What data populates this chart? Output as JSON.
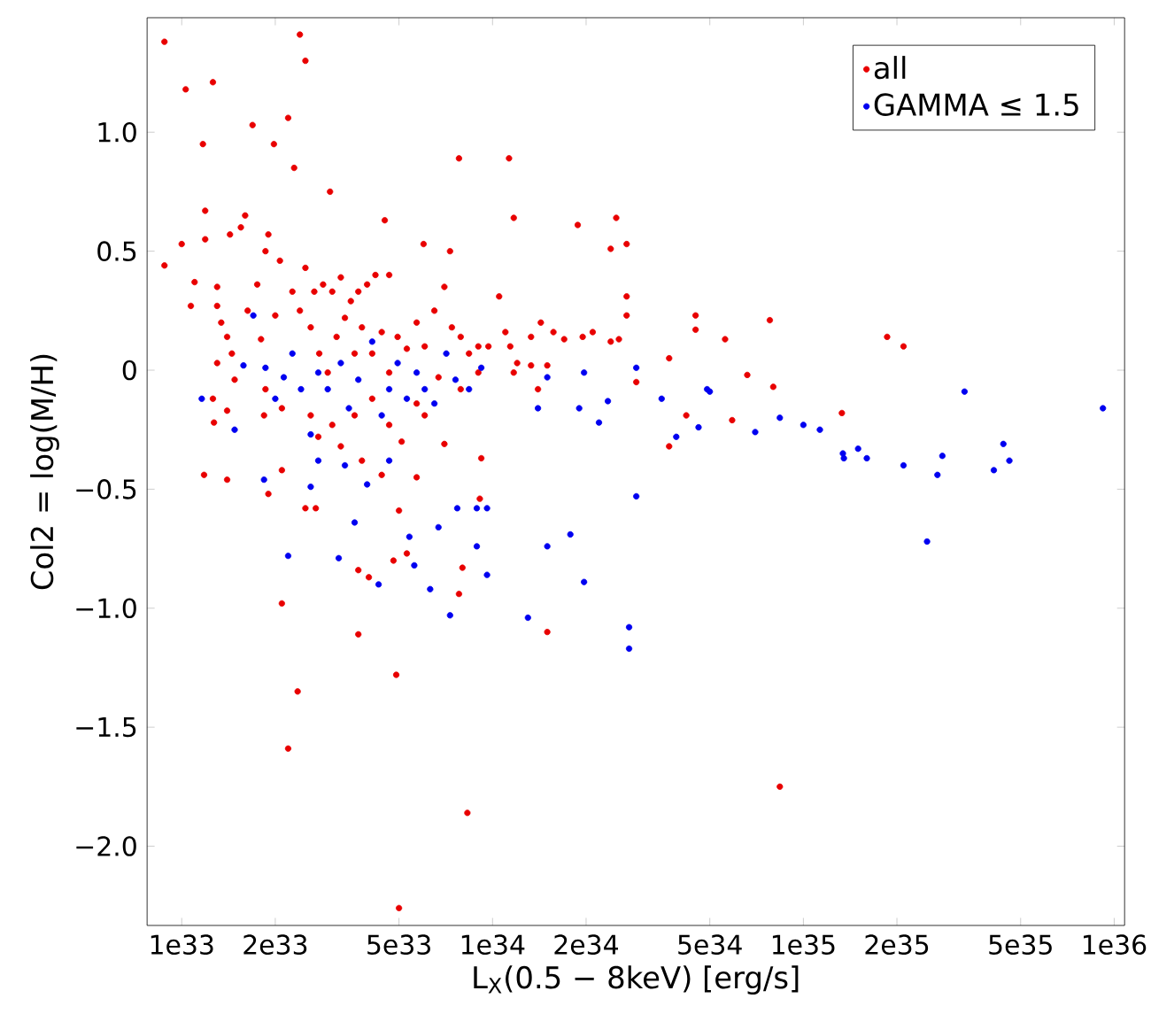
{
  "chart_data": {
    "type": "scatter",
    "xlabel": "L$_{X}$(0.5 − 8keV) [erg/s]",
    "ylabel": "Col2 = log(M/H)",
    "log": "x",
    "legend": "top right",
    "xlim": [
      7.74e+32,
      1.08e+36
    ],
    "ylim": [
      -2.333,
      1.481
    ],
    "xticks": [
      {
        "value": 1e+33,
        "label": "1e33"
      },
      {
        "value": 2e+33,
        "label": "2e33"
      },
      {
        "value": 5e+33,
        "label": "5e33"
      },
      {
        "value": 1e+34,
        "label": "1e34"
      },
      {
        "value": 2e+34,
        "label": "2e34"
      },
      {
        "value": 5e+34,
        "label": "5e34"
      },
      {
        "value": 1e+35,
        "label": "1e35"
      },
      {
        "value": 2e+35,
        "label": "2e35"
      },
      {
        "value": 5e+35,
        "label": "5e35"
      },
      {
        "value": 1e+36,
        "label": "1e36"
      }
    ],
    "yticks": [
      {
        "value": 1.0,
        "label": "1.0"
      },
      {
        "value": 0.5,
        "label": "0.5"
      },
      0,
      {
        "value": -0.5,
        "label": "−0.5"
      },
      {
        "value": -1.0,
        "label": "−1.0"
      },
      {
        "value": -1.5,
        "label": "−1.5"
      },
      {
        "value": -2.0,
        "label": "−2.0"
      }
    ],
    "series": [
      {
        "name": "all",
        "color": "#e80000",
        "x": [
          8.8e+32,
          8.8e+32,
          1.03e+33,
          1e+33,
          1.17e+33,
          1.26e+33,
          1.19e+33,
          1.69e+33,
          1.98e+33,
          2.2e+33,
          2.4e+33,
          2.5e+33,
          2.3e+33,
          3e+33,
          4.5e+33,
          6e+33,
          7.3e+33,
          7.8e+33,
          1.13e+34,
          1.17e+34,
          1.88e+34,
          2.5e+34,
          2.4e+34,
          2.7e+34,
          2.7e+34,
          2.7e+34,
          3.7e+34,
          4.5e+34,
          4.5e+34,
          5.6e+34,
          7.8e+34,
          1.86e+35,
          2.1e+35,
          1.33e+35,
          8.4e+34,
          8e+34,
          6.6e+34,
          5.9e+34,
          4.2e+34,
          3.7e+34,
          2.9e+34,
          1.5e+34,
          8.3e+33,
          5e+33,
          4.9e+33,
          2.2e+33,
          2.36e+33,
          2.1e+33,
          3.7e+33,
          3.7e+33,
          4e+33,
          4.8e+33,
          5e+33,
          5.3e+33,
          7.8e+33,
          8e+33,
          9.1e+33,
          1.4e+33,
          1.18e+33,
          1.9e+33,
          2.5e+33,
          2.7e+33,
          2.1e+33,
          1.07e+33,
          1.1e+33,
          1.19e+33,
          1.3e+33,
          1.3e+33,
          1.43e+33,
          1.55e+33,
          1.6e+33,
          1.34e+33,
          1.45e+33,
          1.3e+33,
          1.26e+33,
          1.27e+33,
          1.4e+33,
          1.63e+33,
          1.75e+33,
          1.86e+33,
          1.9e+33,
          2.07e+33,
          1.8e+33,
          1.86e+33,
          1.84e+33,
          2e+33,
          2.27e+33,
          2.4e+33,
          2.5e+33,
          2.67e+33,
          2.85e+33,
          3.05e+33,
          3.25e+33,
          3.5e+33,
          3.7e+33,
          3.95e+33,
          4.2e+33,
          4.65e+33,
          2.6e+33,
          2.77e+33,
          2.95e+33,
          3.15e+33,
          3.35e+33,
          3.6e+33,
          3.8e+33,
          4.1e+33,
          4.4e+33,
          4.65e+33,
          4.95e+33,
          5.3e+33,
          5.7e+33,
          6.05e+33,
          6.5e+33,
          7e+33,
          7.4e+33,
          7.9e+33,
          8.4e+33,
          9e+33,
          9.7e+33,
          1.05e+34,
          1.1e+34,
          1.14e+34,
          1.2e+34,
          1.33e+34,
          1.43e+34,
          1.57e+34,
          1.7e+34,
          1.95e+34,
          2.1e+34,
          2.4e+34,
          2.55e+34,
          1.33e+34,
          1.5e+34,
          2.1e+33,
          2.6e+33,
          2.75e+33,
          3.05e+33,
          3.6e+33,
          4.1e+33,
          4.65e+33,
          5.1e+33,
          5.7e+33,
          6.05e+33,
          7e+33,
          6.7e+33,
          7.9e+33,
          9e+33,
          1.17e+34,
          1.4e+34,
          3.8e+33,
          4.4e+33,
          5.7e+33,
          9.2e+33,
          3.25e+33,
          1.4e+33,
          1.48e+33
        ],
        "values": [
          1.38,
          0.44,
          1.18,
          0.53,
          0.95,
          1.21,
          0.67,
          1.03,
          0.95,
          1.06,
          1.41,
          1.3,
          0.85,
          0.75,
          0.63,
          0.53,
          0.5,
          0.89,
          0.89,
          0.64,
          0.61,
          0.64,
          0.51,
          0.53,
          0.31,
          0.23,
          0.05,
          0.23,
          0.17,
          0.13,
          0.21,
          0.14,
          0.1,
          -0.18,
          -1.75,
          -0.07,
          -0.02,
          -0.21,
          -0.19,
          -0.32,
          -0.05,
          -1.1,
          -1.86,
          -2.26,
          -1.28,
          -1.59,
          -1.35,
          -0.98,
          -1.11,
          -0.84,
          -0.87,
          -0.8,
          -0.59,
          -0.77,
          -0.94,
          -0.83,
          -0.54,
          -0.46,
          -0.44,
          -0.52,
          -0.58,
          -0.58,
          -0.42,
          0.27,
          0.37,
          0.55,
          0.27,
          0.35,
          0.57,
          0.6,
          0.65,
          0.2,
          0.07,
          0.03,
          -0.12,
          -0.22,
          -0.17,
          0.25,
          0.36,
          0.5,
          0.57,
          0.46,
          0.13,
          -0.08,
          -0.19,
          0.23,
          0.33,
          0.25,
          0.43,
          0.33,
          0.36,
          0.33,
          0.39,
          0.29,
          0.33,
          0.36,
          0.4,
          0.4,
          0.18,
          0.07,
          -0.01,
          0.14,
          0.22,
          0.07,
          0.18,
          0.07,
          0.16,
          -0.01,
          0.14,
          0.09,
          0.2,
          0.1,
          0.25,
          0.35,
          0.18,
          0.14,
          0.07,
          0.1,
          0.1,
          0.31,
          0.16,
          0.1,
          0.03,
          0.14,
          0.2,
          0.16,
          0.13,
          0.14,
          0.16,
          0.12,
          0.13,
          0.02,
          0.02,
          -0.16,
          -0.19,
          -0.28,
          -0.23,
          -0.19,
          -0.12,
          -0.23,
          -0.3,
          -0.14,
          -0.19,
          -0.31,
          -0.03,
          -0.08,
          -0.01,
          -0.01,
          -0.08,
          -0.38,
          -0.44,
          -0.45,
          -0.37,
          -0.32,
          0.14,
          -0.04
        ]
      },
      {
        "name": "GAMMA ≤ 1.5",
        "color": "#0000f0",
        "x": [
          9.2e+35,
          4.4e+35,
          4.6e+35,
          4.1e+35,
          3.3e+35,
          2.7e+35,
          2.8e+35,
          2.5e+35,
          2.1e+35,
          1.6e+35,
          1.5e+35,
          1.35e+35,
          1.34e+35,
          1.13e+35,
          1e+35,
          8.4e+34,
          7e+34,
          4.9e+34,
          5e+34,
          4.6e+34,
          3.9e+34,
          3.5e+34,
          2.9e+34,
          2.9e+34,
          2.75e+34,
          2.75e+34,
          2.35e+34,
          1.9e+34,
          1.97e+34,
          2.2e+34,
          1.97e+34,
          1.78e+34,
          1.5e+34,
          1.3e+34,
          1.4e+34,
          1.5e+34,
          9.6e+33,
          8.9e+33,
          8.9e+33,
          9.6e+33,
          7.7e+33,
          7.3e+33,
          6.7e+33,
          6.3e+33,
          5.4e+33,
          5.6e+33,
          4.3e+33,
          3.6e+33,
          3.2e+33,
          2.2e+33,
          1.84e+33,
          1.16e+33,
          1.48e+33,
          1.58e+33,
          1.7e+33,
          1.86e+33,
          2e+33,
          2.13e+33,
          2.27e+33,
          2.42e+33,
          2.6e+33,
          2.75e+33,
          2.95e+33,
          3.25e+33,
          3.45e+33,
          3.7e+33,
          4.1e+33,
          4.4e+33,
          4.65e+33,
          4.95e+33,
          5.3e+33,
          5.7e+33,
          6.05e+33,
          6.5e+33,
          7.1e+33,
          7.6e+33,
          8.4e+33,
          9.2e+33,
          2.75e+33,
          3.35e+33,
          4.65e+33,
          2.6e+33,
          3.95e+33
        ],
        "values": [
          -0.16,
          -0.31,
          -0.38,
          -0.42,
          -0.09,
          -0.44,
          -0.36,
          -0.72,
          -0.4,
          -0.37,
          -0.33,
          -0.37,
          -0.35,
          -0.25,
          -0.23,
          -0.2,
          -0.26,
          -0.08,
          -0.09,
          -0.24,
          -0.28,
          -0.12,
          0.01,
          -0.53,
          -1.08,
          -1.17,
          -0.13,
          -0.16,
          -0.01,
          -0.22,
          -0.89,
          -0.69,
          -0.74,
          -1.04,
          -0.16,
          -0.03,
          -0.86,
          -0.74,
          -0.58,
          -0.58,
          -0.58,
          -1.03,
          -0.66,
          -0.92,
          -0.7,
          -0.82,
          -0.9,
          -0.64,
          -0.79,
          -0.78,
          -0.46,
          -0.12,
          -0.25,
          0.02,
          0.23,
          0.01,
          -0.12,
          -0.03,
          0.07,
          -0.08,
          -0.27,
          -0.01,
          -0.08,
          0.03,
          -0.16,
          -0.04,
          0.12,
          -0.19,
          -0.08,
          0.03,
          -0.12,
          -0.01,
          -0.08,
          -0.14,
          0.07,
          -0.04,
          -0.08,
          0.01,
          -0.38,
          -0.4,
          -0.38,
          -0.49,
          -0.48
        ]
      }
    ]
  }
}
